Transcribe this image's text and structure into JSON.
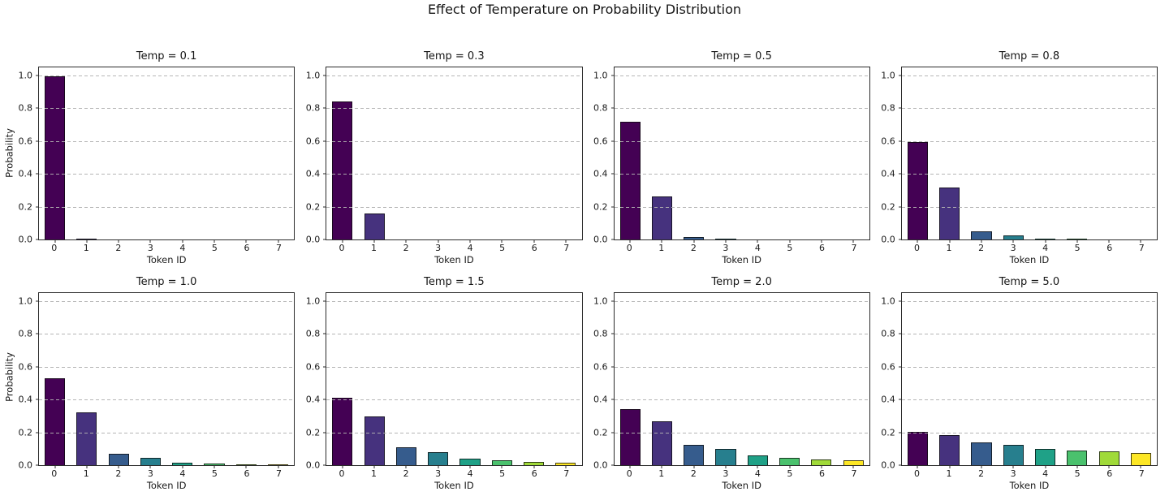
{
  "figure": {
    "title": "Effect of Temperature on Probability Distribution"
  },
  "chart_data": {
    "type": "bar",
    "layout": "2x4 subplot grid",
    "categories": [
      "0",
      "1",
      "2",
      "3",
      "4",
      "5",
      "6",
      "7"
    ],
    "xlabel": "Token ID",
    "ylabel": "Probability",
    "ylim": [
      0,
      1.05
    ],
    "yticks": [
      0.0,
      0.2,
      0.4,
      0.6,
      0.8,
      1.0
    ],
    "grid": "horizontal dashed gridlines at each y tick",
    "legend": "none",
    "bar_colors": [
      "#440154",
      "#46327e",
      "#365c8d",
      "#277f8e",
      "#1fa187",
      "#4ac16d",
      "#a0da39",
      "#fde725"
    ],
    "subplots": [
      {
        "title": "Temp = 0.1",
        "values": [
          0.9933,
          0.0067,
          0.0,
          0.0,
          0.0,
          0.0,
          0.0,
          0.0
        ]
      },
      {
        "title": "Temp = 0.3",
        "values": [
          0.8401,
          0.1586,
          0.0011,
          0.0002,
          0.0,
          0.0,
          0.0,
          0.0
        ]
      },
      {
        "title": "Temp = 0.5",
        "values": [
          0.7172,
          0.2638,
          0.0131,
          0.0048,
          0.0007,
          0.0002,
          0.0001,
          0.0
        ]
      },
      {
        "title": "Temp = 0.8",
        "values": [
          0.5931,
          0.3175,
          0.0487,
          0.0261,
          0.0075,
          0.004,
          0.0021,
          0.0011
        ]
      },
      {
        "title": "Temp = 1.0",
        "values": [
          0.529,
          0.3208,
          0.0716,
          0.0434,
          0.016,
          0.0097,
          0.0059,
          0.0036
        ]
      },
      {
        "title": "Temp = 1.5",
        "values": [
          0.4131,
          0.296,
          0.1089,
          0.078,
          0.0401,
          0.0287,
          0.0206,
          0.0147
        ]
      },
      {
        "title": "Temp = 2.0",
        "values": [
          0.3413,
          0.2658,
          0.1256,
          0.0978,
          0.0593,
          0.0462,
          0.036,
          0.028
        ]
      },
      {
        "title": "Temp = 5.0",
        "values": [
          0.204,
          0.1846,
          0.1367,
          0.1237,
          0.1013,
          0.0917,
          0.0829,
          0.075
        ]
      }
    ]
  }
}
